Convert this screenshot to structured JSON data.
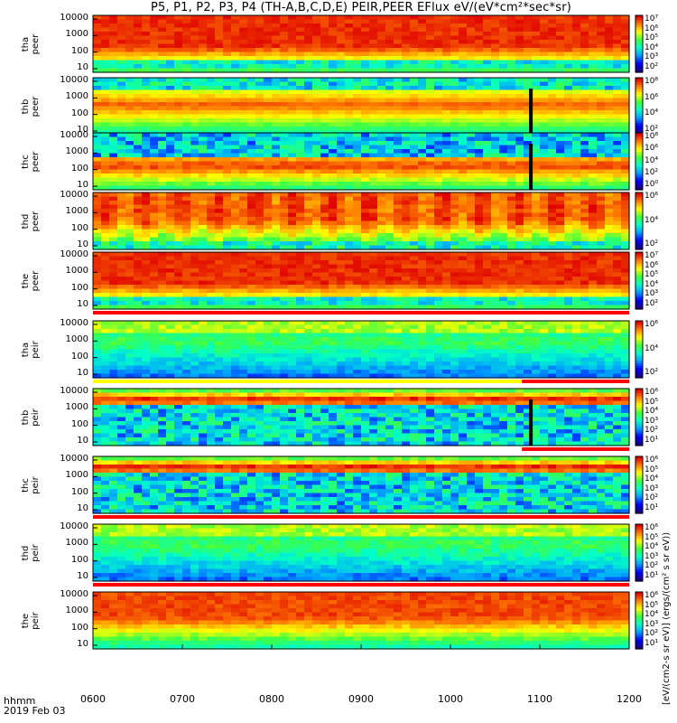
{
  "title": "P5, P1, P2, P3, P4 (TH-A,B,C,D,E) PEIR,PEER EFlux eV/(eV*cm²*sec*sr)",
  "footer": {
    "line1": "hhmm",
    "line2": "2019 Feb 03"
  },
  "colorbar_unit": "[eV/(cm2-s sr eV)] (ergs/(cm² s sr eV))",
  "chart_data": {
    "type": "heatmap",
    "x_axis": {
      "ticks": [
        "0600",
        "0700",
        "0800",
        "0900",
        "1000",
        "1100",
        "1200"
      ],
      "range": [
        "0600",
        "1200"
      ]
    },
    "y_axis": {
      "scale": "log",
      "unit": "eV",
      "ticks": [
        "10",
        "100",
        "1000",
        "10000"
      ]
    },
    "colorscale": [
      "#1a0080",
      "#0000ff",
      "#00a0ff",
      "#00ffc8",
      "#40ff40",
      "#ffff00",
      "#ff8000",
      "#e00000"
    ],
    "panels": [
      {
        "probe": "tha",
        "species": "peer",
        "label": "tha\npeer",
        "cb_ticks": [
          "10⁷",
          "10⁶",
          "10⁵",
          "10⁴",
          "10³",
          "10²"
        ],
        "ticks": [
          "10000",
          "1000",
          "100",
          "10"
        ],
        "profile": "flux_high",
        "bar": "none"
      },
      {
        "probe": "thb",
        "species": "peer",
        "label": "thb\npeer",
        "cb_ticks": [
          "10⁸",
          "10⁶",
          "10⁴",
          "10²"
        ],
        "ticks": [
          "10000",
          "1000",
          "100",
          "10"
        ],
        "profile": "band_mid",
        "bar": "none",
        "gap_at": "1088"
      },
      {
        "probe": "thc",
        "species": "peer",
        "label": "thc\npeer",
        "cb_ticks": [
          "10⁸",
          "10⁶",
          "10⁴",
          "10²",
          "10⁰"
        ],
        "ticks": [
          "10000",
          "1000",
          "100",
          "10"
        ],
        "profile": "band_mid_noisy",
        "bar": "none",
        "gap_at": "1088"
      },
      {
        "probe": "thd",
        "species": "peer",
        "label": "thd\npeer",
        "cb_ticks": [
          "10⁶",
          "10⁴",
          "10²"
        ],
        "ticks": [
          "10000",
          "1000",
          "100",
          "10"
        ],
        "profile": "flux_high_var",
        "bar": "none"
      },
      {
        "probe": "the",
        "species": "peer",
        "label": "the\npeer",
        "cb_ticks": [
          "10⁷",
          "10⁶",
          "10⁵",
          "10⁴",
          "10³",
          "10²"
        ],
        "ticks": [
          "10000",
          "1000",
          "100",
          "10"
        ],
        "profile": "flux_high",
        "bar": "red"
      },
      {
        "probe": "tha",
        "species": "peir",
        "label": "tha\npeir",
        "cb_ticks": [
          "10⁶",
          "10⁴",
          "10²"
        ],
        "ticks": [
          "10000",
          "1000",
          "100",
          "10"
        ],
        "profile": "ion_green",
        "bar": "yellow_red"
      },
      {
        "probe": "thb",
        "species": "peir",
        "label": "thb\npeir",
        "cb_ticks": [
          "10⁶",
          "10⁵",
          "10⁴",
          "10³",
          "10²",
          "10¹"
        ],
        "ticks": [
          "10000",
          "1000",
          "100",
          "10"
        ],
        "profile": "ion_band",
        "bar": "red_end",
        "gap_at": "1088"
      },
      {
        "probe": "thc",
        "species": "peir",
        "label": "thc\npeir",
        "cb_ticks": [
          "10⁶",
          "10⁵",
          "10⁴",
          "10³",
          "10²",
          "10¹"
        ],
        "ticks": [
          "10000",
          "1000",
          "100",
          "10"
        ],
        "profile": "ion_band",
        "bar": "red"
      },
      {
        "probe": "thd",
        "species": "peir",
        "label": "thd\npeir",
        "cb_ticks": [
          "10⁶",
          "10⁵",
          "10⁴",
          "10³",
          "10²",
          "10¹"
        ],
        "ticks": [
          "10000",
          "1000",
          "100",
          "10"
        ],
        "profile": "ion_green",
        "bar": "red"
      },
      {
        "probe": "the",
        "species": "peir",
        "label": "the\npeir",
        "cb_ticks": [
          "10⁶",
          "10⁵",
          "10⁴",
          "10³",
          "10²",
          "10¹"
        ],
        "ticks": [
          "10000",
          "1000",
          "100",
          "10"
        ],
        "profile": "ion_hot",
        "bar": "none"
      }
    ]
  }
}
